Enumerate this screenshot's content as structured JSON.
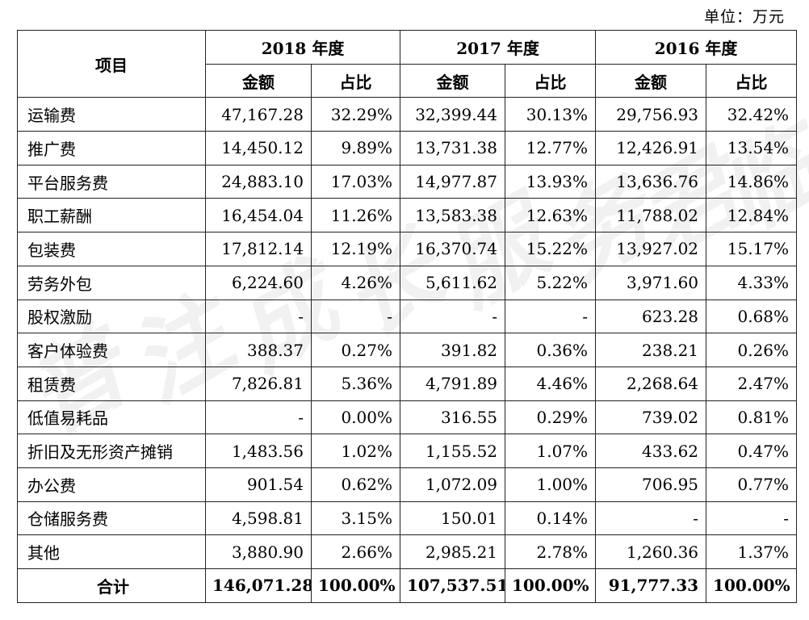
{
  "unit_label": "单位：万元",
  "watermark_text": [
    "普",
    "注",
    "成",
    "长",
    "服",
    "务",
    "君",
    "临"
  ],
  "table": {
    "header": {
      "item_label": "项目",
      "years": [
        "2018 年度",
        "2017 年度",
        "2016 年度"
      ],
      "amount_label": "金额",
      "ratio_label": "占比"
    },
    "rows": [
      {
        "name": "运输费",
        "cells": [
          "47,167.28",
          "32.29%",
          "32,399.44",
          "30.13%",
          "29,756.93",
          "32.42%"
        ]
      },
      {
        "name": "推广费",
        "cells": [
          "14,450.12",
          "9.89%",
          "13,731.38",
          "12.77%",
          "12,426.91",
          "13.54%"
        ]
      },
      {
        "name": "平台服务费",
        "cells": [
          "24,883.10",
          "17.03%",
          "14,977.87",
          "13.93%",
          "13,636.76",
          "14.86%"
        ]
      },
      {
        "name": "职工薪酬",
        "cells": [
          "16,454.04",
          "11.26%",
          "13,583.38",
          "12.63%",
          "11,788.02",
          "12.84%"
        ]
      },
      {
        "name": "包装费",
        "cells": [
          "17,812.14",
          "12.19%",
          "16,370.74",
          "15.22%",
          "13,927.02",
          "15.17%"
        ]
      },
      {
        "name": "劳务外包",
        "cells": [
          "6,224.60",
          "4.26%",
          "5,611.62",
          "5.22%",
          "3,971.60",
          "4.33%"
        ]
      },
      {
        "name": "股权激励",
        "cells": [
          "-",
          "-",
          "-",
          "-",
          "623.28",
          "0.68%"
        ]
      },
      {
        "name": "客户体验费",
        "cells": [
          "388.37",
          "0.27%",
          "391.82",
          "0.36%",
          "238.21",
          "0.26%"
        ]
      },
      {
        "name": "租赁费",
        "cells": [
          "7,826.81",
          "5.36%",
          "4,791.89",
          "4.46%",
          "2,268.64",
          "2.47%"
        ]
      },
      {
        "name": "低值易耗品",
        "cells": [
          "-",
          "0.00%",
          "316.55",
          "0.29%",
          "739.02",
          "0.81%"
        ]
      },
      {
        "name": "折旧及无形资产摊销",
        "cells": [
          "1,483.56",
          "1.02%",
          "1,155.52",
          "1.07%",
          "433.62",
          "0.47%"
        ]
      },
      {
        "name": "办公费",
        "cells": [
          "901.54",
          "0.62%",
          "1,072.09",
          "1.00%",
          "706.95",
          "0.77%"
        ]
      },
      {
        "name": "仓储服务费",
        "cells": [
          "4,598.81",
          "3.15%",
          "150.01",
          "0.14%",
          "-",
          "-"
        ]
      },
      {
        "name": "其他",
        "cells": [
          "3,880.90",
          "2.66%",
          "2,985.21",
          "2.78%",
          "1,260.36",
          "1.37%"
        ]
      }
    ],
    "total": {
      "name": "合计",
      "cells": [
        "146,071.28",
        "100.00%",
        "107,537.51",
        "100.00%",
        "91,777.33",
        "100.00%"
      ]
    }
  }
}
